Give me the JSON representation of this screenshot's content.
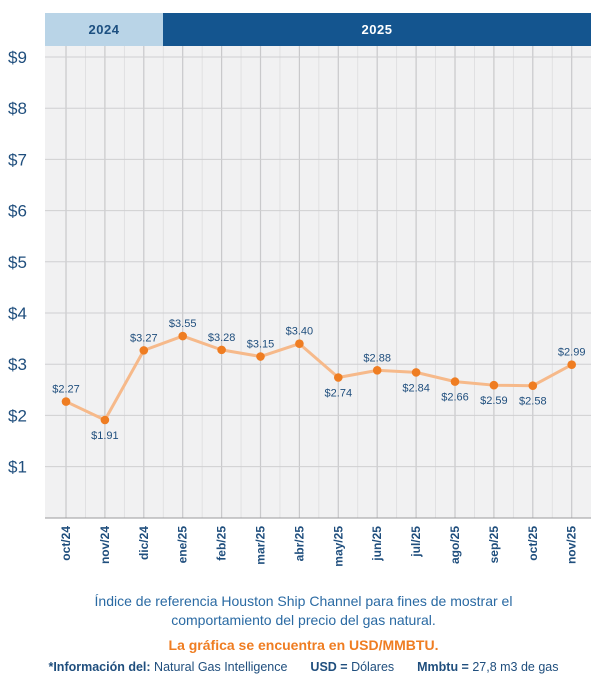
{
  "header": {
    "year_left": "2024",
    "year_right": "2025"
  },
  "chart_data": {
    "type": "line",
    "categories": [
      "oct/24",
      "nov/24",
      "dic/24",
      "ene/25",
      "feb/25",
      "mar/25",
      "abr/25",
      "may/25",
      "jun/25",
      "jul/25",
      "ago/25",
      "sep/25",
      "oct/25",
      "nov/25"
    ],
    "values": [
      2.27,
      1.91,
      3.27,
      3.55,
      3.28,
      3.15,
      3.4,
      2.74,
      2.88,
      2.84,
      2.66,
      2.59,
      2.58,
      2.99
    ],
    "data_labels": [
      "$2.27",
      "$1.91",
      "$3.27",
      "$3.55",
      "$3.28",
      "$3.15",
      "$3.40",
      "$2.74",
      "$2.88",
      "$2.84",
      "$2.66",
      "$2.59",
      "$2.58",
      "$2.99"
    ],
    "y_ticks": [
      1,
      2,
      3,
      4,
      5,
      6,
      7,
      8,
      9
    ],
    "y_tick_labels": [
      "$1",
      "$2",
      "$3",
      "$4",
      "$5",
      "$6",
      "$7",
      "$8",
      "$9"
    ],
    "ylim": [
      0,
      9
    ],
    "grid": true,
    "line_color": "#f6b98a",
    "marker_color": "#ef7d22",
    "label_color": "#1f4e7d"
  },
  "captions": {
    "description": "Índice de referencia Houston Ship Channel para fines de mostrar el comportamiento del precio del gas natural.",
    "note": "La gráfica se encuentra en USD/MMBTU.",
    "source_label": "*Información del:",
    "source_value": "Natural Gas Intelligence",
    "usd_label": "USD =",
    "usd_value": "Dólares",
    "mmbtu_label": "Mmbtu =",
    "mmbtu_value": "27,8 m3 de gas"
  },
  "colors": {
    "header_2024_bg": "#b9d4e7",
    "header_2025_bg": "#14558f",
    "plot_bg": "#f1f1f2",
    "axis_text": "#1f4e7d",
    "accent_orange": "#ef7d22"
  }
}
